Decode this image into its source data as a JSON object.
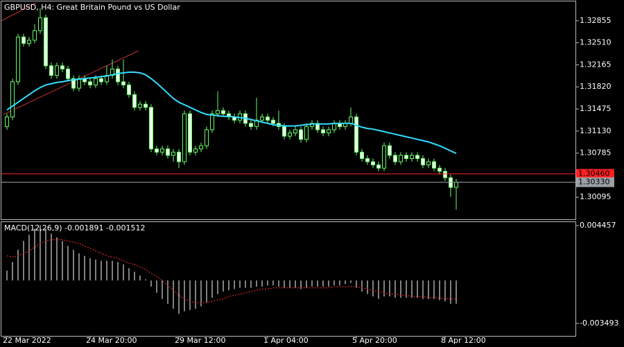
{
  "chart_data": [
    {
      "type": "candlestick",
      "title": "GBPUSD, H4:  Great Britain Pound vs US Dollar",
      "categories": [
        "22 Mar 2022",
        null,
        null,
        null,
        null,
        null,
        null,
        null,
        null,
        null,
        null,
        null,
        null,
        null,
        null,
        "24 Mar 20:00",
        null,
        null,
        null,
        null,
        null,
        null,
        null,
        null,
        null,
        null,
        null,
        null,
        null,
        null,
        null,
        "29 Mar 12:00",
        null,
        null,
        null,
        null,
        null,
        null,
        null,
        null,
        null,
        null,
        null,
        null,
        null,
        null,
        null,
        "1 Apr 04:00",
        null,
        null,
        null,
        null,
        null,
        null,
        null,
        null,
        null,
        null,
        null,
        null,
        null,
        null,
        null,
        "5 Apr 20:00",
        null,
        null,
        null,
        null,
        null,
        null,
        null,
        null,
        null,
        null,
        null,
        null,
        null,
        null,
        null,
        "8 Apr 12:00",
        null,
        null
      ],
      "open": [
        1.312,
        1.3135,
        1.319,
        1.326,
        1.325,
        1.3255,
        1.327,
        1.329,
        1.3215,
        1.32,
        1.3215,
        1.321,
        1.3195,
        1.318,
        1.3195,
        1.319,
        1.3185,
        1.3195,
        1.319,
        1.32,
        1.321,
        1.319,
        1.3185,
        1.317,
        1.315,
        1.3155,
        1.315,
        1.3085,
        1.308,
        1.3085,
        1.3075,
        1.308,
        1.3065,
        1.314,
        1.308,
        1.3085,
        1.309,
        1.3115,
        1.314,
        1.3145,
        1.314,
        1.3135,
        1.313,
        1.314,
        1.3125,
        1.312,
        1.313,
        1.3135,
        1.313,
        1.3125,
        1.312,
        1.3105,
        1.311,
        1.3115,
        1.31,
        1.312,
        1.3125,
        1.3115,
        1.311,
        1.3115,
        1.3125,
        1.312,
        1.3125,
        1.3135,
        1.308,
        1.307,
        1.3065,
        1.306,
        1.3055,
        1.309,
        1.3075,
        1.3065,
        1.3075,
        1.307,
        1.3075,
        1.307,
        1.306,
        1.3065,
        1.3055,
        1.305,
        1.304,
        1.3025
      ],
      "high": [
        1.314,
        1.3195,
        1.3265,
        1.3265,
        1.326,
        1.328,
        1.3305,
        1.3295,
        1.322,
        1.322,
        1.322,
        1.3215,
        1.32,
        1.32,
        1.32,
        1.3195,
        1.32,
        1.32,
        1.3215,
        1.3225,
        1.3215,
        1.3225,
        1.319,
        1.3175,
        1.316,
        1.316,
        1.3155,
        1.309,
        1.309,
        1.309,
        1.3085,
        1.3085,
        1.3145,
        1.3145,
        1.309,
        1.3095,
        1.312,
        1.3145,
        1.3175,
        1.315,
        1.3145,
        1.314,
        1.3145,
        1.3145,
        1.313,
        1.3165,
        1.314,
        1.314,
        1.3135,
        1.3145,
        1.3125,
        1.3115,
        1.312,
        1.312,
        1.3125,
        1.313,
        1.313,
        1.312,
        1.312,
        1.313,
        1.313,
        1.313,
        1.315,
        1.314,
        1.3085,
        1.3075,
        1.307,
        1.3065,
        1.3095,
        1.3095,
        1.308,
        1.308,
        1.308,
        1.308,
        1.308,
        1.3075,
        1.307,
        1.307,
        1.306,
        1.3055,
        1.3045,
        1.3038
      ],
      "low": [
        1.3115,
        1.313,
        1.3185,
        1.3245,
        1.3245,
        1.325,
        1.3265,
        1.321,
        1.3195,
        1.3195,
        1.3205,
        1.319,
        1.3175,
        1.3175,
        1.3185,
        1.318,
        1.318,
        1.3185,
        1.3185,
        1.3195,
        1.3185,
        1.318,
        1.3165,
        1.3145,
        1.3145,
        1.3145,
        1.308,
        1.3075,
        1.3075,
        1.307,
        1.3065,
        1.3055,
        1.306,
        1.3075,
        1.3075,
        1.308,
        1.3085,
        1.311,
        1.3135,
        1.3135,
        1.313,
        1.3125,
        1.3125,
        1.312,
        1.3115,
        1.3115,
        1.3125,
        1.3125,
        1.312,
        1.3115,
        1.31,
        1.31,
        1.3105,
        1.3095,
        1.3095,
        1.3115,
        1.311,
        1.3105,
        1.3105,
        1.311,
        1.3115,
        1.3115,
        1.312,
        1.3075,
        1.3065,
        1.306,
        1.3055,
        1.305,
        1.305,
        1.307,
        1.306,
        1.306,
        1.3065,
        1.3065,
        1.3065,
        1.3055,
        1.3055,
        1.305,
        1.3045,
        1.3035,
        1.301,
        1.299
      ],
      "close": [
        1.3135,
        1.319,
        1.326,
        1.325,
        1.3255,
        1.327,
        1.329,
        1.3215,
        1.32,
        1.3215,
        1.321,
        1.3195,
        1.318,
        1.3195,
        1.319,
        1.3185,
        1.3195,
        1.319,
        1.32,
        1.321,
        1.319,
        1.3185,
        1.317,
        1.315,
        1.3155,
        1.315,
        1.3085,
        1.308,
        1.3085,
        1.3075,
        1.308,
        1.3065,
        1.314,
        1.308,
        1.3085,
        1.309,
        1.3115,
        1.314,
        1.3145,
        1.314,
        1.3135,
        1.313,
        1.314,
        1.3125,
        1.312,
        1.313,
        1.3135,
        1.313,
        1.3125,
        1.312,
        1.3105,
        1.311,
        1.3115,
        1.31,
        1.312,
        1.3125,
        1.3115,
        1.311,
        1.3115,
        1.3125,
        1.312,
        1.3125,
        1.3135,
        1.308,
        1.307,
        1.3065,
        1.306,
        1.3055,
        1.309,
        1.3075,
        1.3065,
        1.3075,
        1.307,
        1.3075,
        1.307,
        1.306,
        1.3065,
        1.3055,
        1.305,
        1.304,
        1.3025,
        1.3033
      ],
      "up_color": "#000000",
      "down_color": "#e8ffe8",
      "wick_color": "#66ff66",
      "ma": {
        "color": "#33ddff",
        "values": [
          1.3146,
          1.3152,
          1.3158,
          1.3164,
          1.317,
          1.3176,
          1.3181,
          1.3185,
          1.3187,
          1.3189,
          1.319,
          1.3192,
          1.3193,
          1.3194,
          1.3195,
          1.3196,
          1.3197,
          1.3198,
          1.3199,
          1.3201,
          1.3203,
          1.3204,
          1.3205,
          1.3205,
          1.3204,
          1.3201,
          1.3195,
          1.3188,
          1.318,
          1.3172,
          1.3164,
          1.3158,
          1.3154,
          1.315,
          1.3146,
          1.3142,
          1.3139,
          1.3138,
          1.3137,
          1.3136,
          1.3136,
          1.3135,
          1.3134,
          1.3133,
          1.3131,
          1.3129,
          1.3127,
          1.3125,
          1.3123,
          1.3122,
          1.3121,
          1.3121,
          1.3121,
          1.3122,
          1.3123,
          1.3124,
          1.3124,
          1.3124,
          1.3124,
          1.3125,
          1.3125,
          1.3125,
          1.3125,
          1.3122,
          1.3119,
          1.3117,
          1.3116,
          1.3114,
          1.3112,
          1.311,
          1.3108,
          1.3106,
          1.3104,
          1.3102,
          1.31,
          1.3098,
          1.3096,
          1.3093,
          1.309,
          1.3086,
          1.3082,
          1.3078
        ]
      },
      "price_lines": [
        {
          "value": 1.3046,
          "label": "1.30460",
          "color": "#ff2020"
        },
        {
          "value": 1.3033,
          "label": "1.30330",
          "color": "#9aa0a6"
        }
      ],
      "ylim": [
        1.2975,
        1.33157
      ],
      "yticks": [
        1.32855,
        {
          "value": 1.3251,
          "label": "1.32510"
        },
        1.32165,
        {
          "value": 1.3182,
          "label": "1.31820"
        },
        1.31475,
        {
          "value": 1.3113,
          "label": "1.31130"
        },
        1.30785,
        1.30095
      ]
    },
    {
      "type": "macd",
      "label": "MACD(12,26,9) -0.001891 -0.001512",
      "main": {
        "color": "#ffffff",
        "values": [
          0.0008,
          0.0015,
          0.0025,
          0.0032,
          0.0037,
          0.0042,
          0.0045,
          0.0042,
          0.0038,
          0.0035,
          0.0032,
          0.0028,
          0.0025,
          0.0022,
          0.002,
          0.0018,
          0.0017,
          0.0016,
          0.0016,
          0.0016,
          0.0015,
          0.0013,
          0.001,
          0.0007,
          0.0004,
          0.0001,
          -0.0005,
          -0.001,
          -0.0015,
          -0.0019,
          -0.0023,
          -0.0027,
          -0.0025,
          -0.0024,
          -0.0023,
          -0.0021,
          -0.0018,
          -0.0014,
          -0.0011,
          -0.0009,
          -0.0008,
          -0.0007,
          -0.0006,
          -0.0006,
          -0.0006,
          -0.0005,
          -0.0005,
          -0.0004,
          -0.0004,
          -0.0005,
          -0.0006,
          -0.0006,
          -0.0006,
          -0.0007,
          -0.0006,
          -0.0005,
          -0.0005,
          -0.0005,
          -0.0005,
          -0.0004,
          -0.0004,
          -0.0003,
          -0.0002,
          -0.0006,
          -0.0009,
          -0.0011,
          -0.0013,
          -0.0015,
          -0.0013,
          -0.0013,
          -0.0014,
          -0.0014,
          -0.0014,
          -0.0014,
          -0.0014,
          -0.0015,
          -0.0015,
          -0.0015,
          -0.0016,
          -0.0017,
          -0.0019,
          -0.001891
        ]
      },
      "signal": {
        "color": "#ff3030",
        "values": [
          0.002,
          0.0019,
          0.002,
          0.0022,
          0.0024,
          0.0027,
          0.003,
          0.0032,
          0.0033,
          0.0033,
          0.0033,
          0.0032,
          0.0031,
          0.003,
          0.0028,
          0.0026,
          0.0024,
          0.0022,
          0.002,
          0.0019,
          0.0018,
          0.0016,
          0.0014,
          0.0013,
          0.0011,
          0.0009,
          0.0006,
          0.0003,
          0.0,
          -0.0004,
          -0.0008,
          -0.0012,
          -0.0015,
          -0.0017,
          -0.0018,
          -0.0018,
          -0.0018,
          -0.0017,
          -0.0016,
          -0.0015,
          -0.0013,
          -0.0012,
          -0.0011,
          -0.001,
          -0.0009,
          -0.0008,
          -0.0007,
          -0.0007,
          -0.0006,
          -0.0006,
          -0.0006,
          -0.0006,
          -0.0006,
          -0.0006,
          -0.0006,
          -0.0006,
          -0.0006,
          -0.0006,
          -0.0006,
          -0.0005,
          -0.0005,
          -0.0005,
          -0.0005,
          -0.0005,
          -0.0006,
          -0.0007,
          -0.0008,
          -0.0009,
          -0.001,
          -0.0011,
          -0.0011,
          -0.0012,
          -0.0012,
          -0.0013,
          -0.0013,
          -0.0013,
          -0.0014,
          -0.0014,
          -0.0014,
          -0.0015,
          -0.0015,
          -0.001512
        ]
      },
      "ylim": [
        -0.004501,
        0.004737
      ],
      "yticks": [
        0.004457,
        -0.003493
      ]
    }
  ]
}
